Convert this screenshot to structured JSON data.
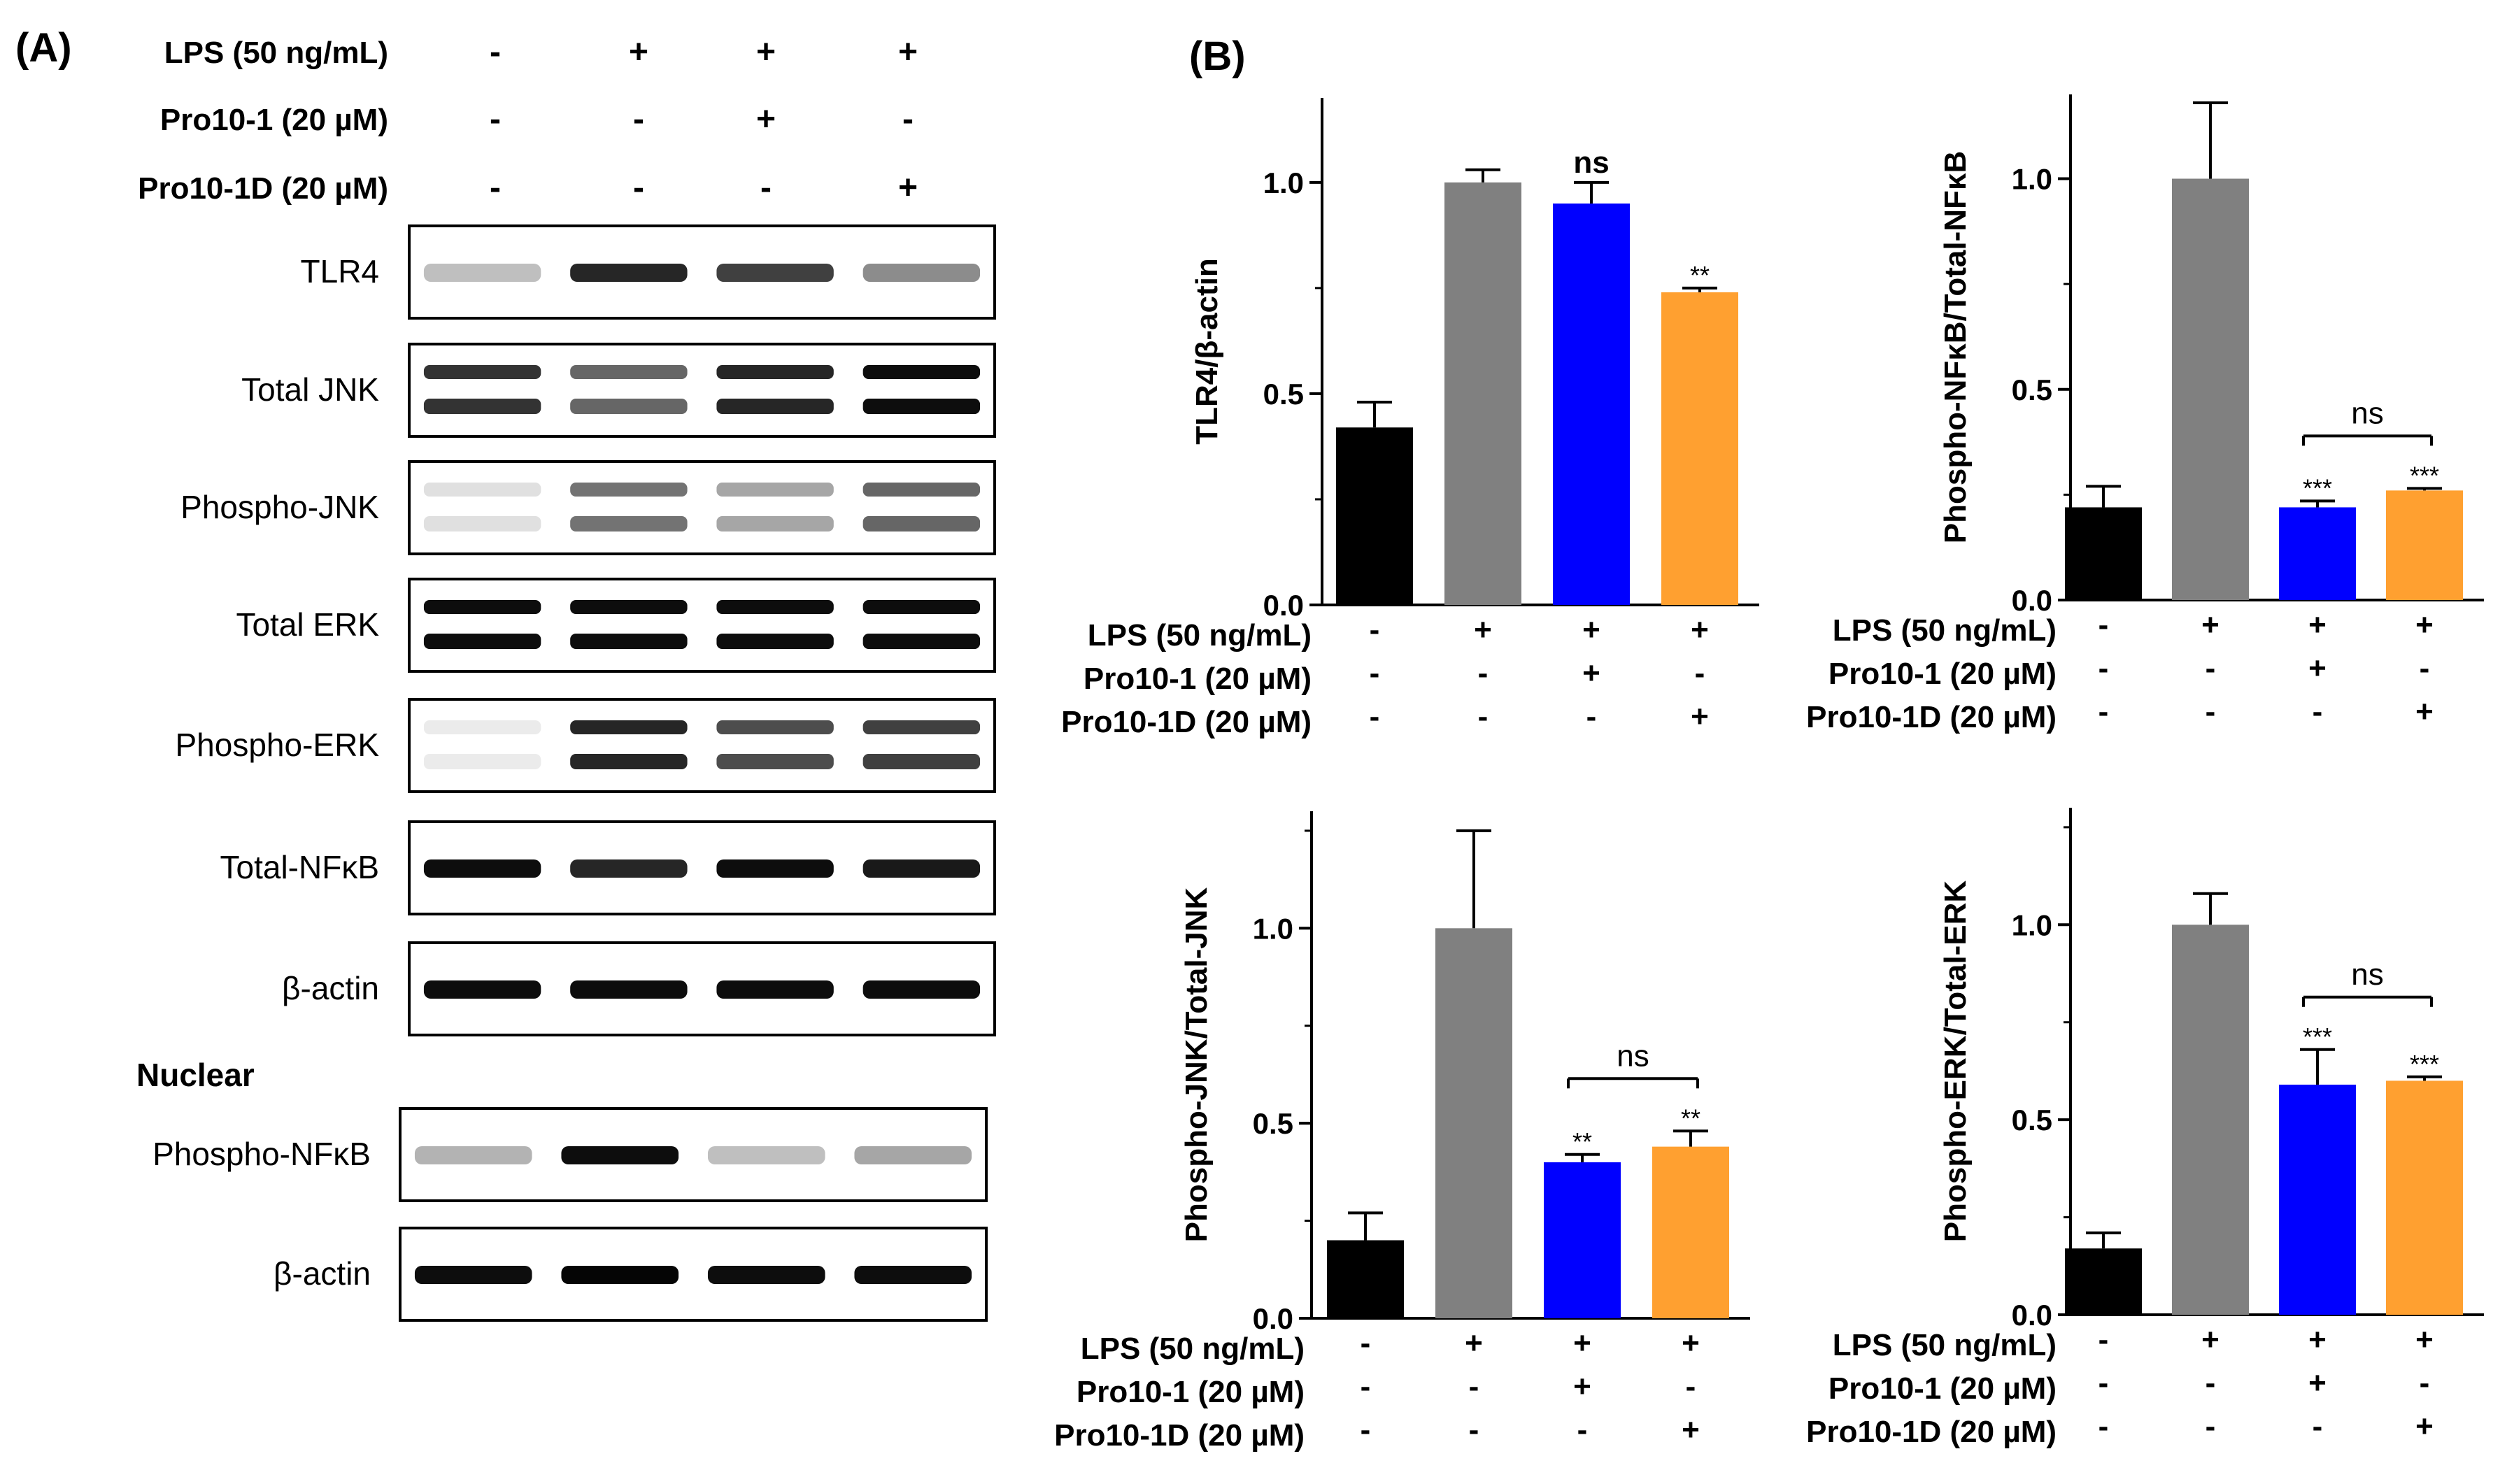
{
  "panel_a": {
    "label": "(A)",
    "conditions": [
      {
        "label": "LPS (50 ng/mL)",
        "signs": [
          "-",
          "+",
          "+",
          "+"
        ]
      },
      {
        "label": "Pro10-1 (20 µM)",
        "signs": [
          "-",
          "-",
          "+",
          "-"
        ]
      },
      {
        "label": "Pro10-1D (20 µM)",
        "signs": [
          "-",
          "-",
          "-",
          "+"
        ]
      }
    ],
    "blots": [
      {
        "label": "TLR4",
        "pattern": "single",
        "intensity": [
          0.25,
          0.85,
          0.75,
          0.45
        ]
      },
      {
        "label": "Total JNK",
        "pattern": "double",
        "intensity": [
          0.8,
          0.6,
          0.85,
          0.95
        ]
      },
      {
        "label": "Phospho-JNK",
        "pattern": "double",
        "intensity": [
          0.12,
          0.55,
          0.35,
          0.6
        ]
      },
      {
        "label": "Total ERK",
        "pattern": "double",
        "intensity": [
          0.95,
          0.95,
          0.95,
          0.95
        ]
      },
      {
        "label": "Phospho-ERK",
        "pattern": "double",
        "intensity": [
          0.08,
          0.85,
          0.7,
          0.75
        ]
      },
      {
        "label": "Total-NFκB",
        "pattern": "single",
        "intensity": [
          0.95,
          0.85,
          0.95,
          0.9
        ]
      },
      {
        "label": "β-actin",
        "pattern": "single",
        "intensity": [
          0.95,
          0.95,
          0.95,
          0.95
        ]
      },
      {
        "label": "Phospho-NFκB",
        "pattern": "single",
        "intensity": [
          0.3,
          0.95,
          0.25,
          0.35
        ]
      },
      {
        "label": "β-actin",
        "pattern": "single",
        "intensity": [
          0.95,
          0.98,
          0.95,
          0.95
        ]
      }
    ],
    "nuclear_label": "Nuclear"
  },
  "panel_b": {
    "label": "(B)",
    "condition_labels": [
      "LPS (50 ng/mL)",
      "Pro10-1 (20 µM)",
      "Pro10-1D (20 µM)"
    ],
    "condition_signs": [
      [
        "-",
        "+",
        "+",
        "+"
      ],
      [
        "-",
        "-",
        "+",
        "-"
      ],
      [
        "-",
        "-",
        "-",
        "+"
      ]
    ]
  },
  "colors": {
    "control": "#000000",
    "lps": "#808080",
    "pro10_1": "#0000ff",
    "pro10_1d": "#ffa030"
  },
  "chart_data": [
    {
      "type": "bar",
      "ylabel": "TLR4/β-actin",
      "categories": [
        "-",
        "+",
        "+",
        "+"
      ],
      "values": [
        0.42,
        1.0,
        0.95,
        0.74
      ],
      "errors": [
        0.06,
        0.03,
        0.05,
        0.01
      ],
      "ylim": [
        0,
        1.2
      ],
      "yticks": [
        "0.0",
        "0.5",
        "1.0"
      ],
      "significance": [
        "",
        "",
        "ns",
        "**"
      ],
      "comparison": null
    },
    {
      "type": "bar",
      "ylabel": "Phospho-NFκB/Total-NFκB",
      "categories": [
        "-",
        "+",
        "+",
        "+"
      ],
      "values": [
        0.22,
        1.0,
        0.22,
        0.26
      ],
      "errors": [
        0.05,
        0.18,
        0.015,
        0.005
      ],
      "ylim": [
        0,
        1.2
      ],
      "yticks": [
        "0.0",
        "0.5",
        "1.0"
      ],
      "significance": [
        "",
        "",
        "***",
        "***"
      ],
      "comparison": "ns"
    },
    {
      "type": "bar",
      "ylabel": "Phospho-JNK/Total-JNK",
      "categories": [
        "-",
        "+",
        "+",
        "+"
      ],
      "values": [
        0.2,
        1.0,
        0.4,
        0.44
      ],
      "errors": [
        0.07,
        0.25,
        0.02,
        0.04
      ],
      "ylim": [
        0,
        1.3
      ],
      "yticks": [
        "0.0",
        "0.5",
        "1.0"
      ],
      "significance": [
        "",
        "",
        "**",
        "**"
      ],
      "comparison": "ns"
    },
    {
      "type": "bar",
      "ylabel": "Phospho-ERK/Total-ERK",
      "categories": [
        "-",
        "+",
        "+",
        "+"
      ],
      "values": [
        0.17,
        1.0,
        0.59,
        0.6
      ],
      "errors": [
        0.04,
        0.08,
        0.09,
        0.01
      ],
      "ylim": [
        0,
        1.3
      ],
      "yticks": [
        "0.0",
        "0.5",
        "1.0"
      ],
      "significance": [
        "",
        "",
        "***",
        "***"
      ],
      "comparison": "ns"
    }
  ]
}
